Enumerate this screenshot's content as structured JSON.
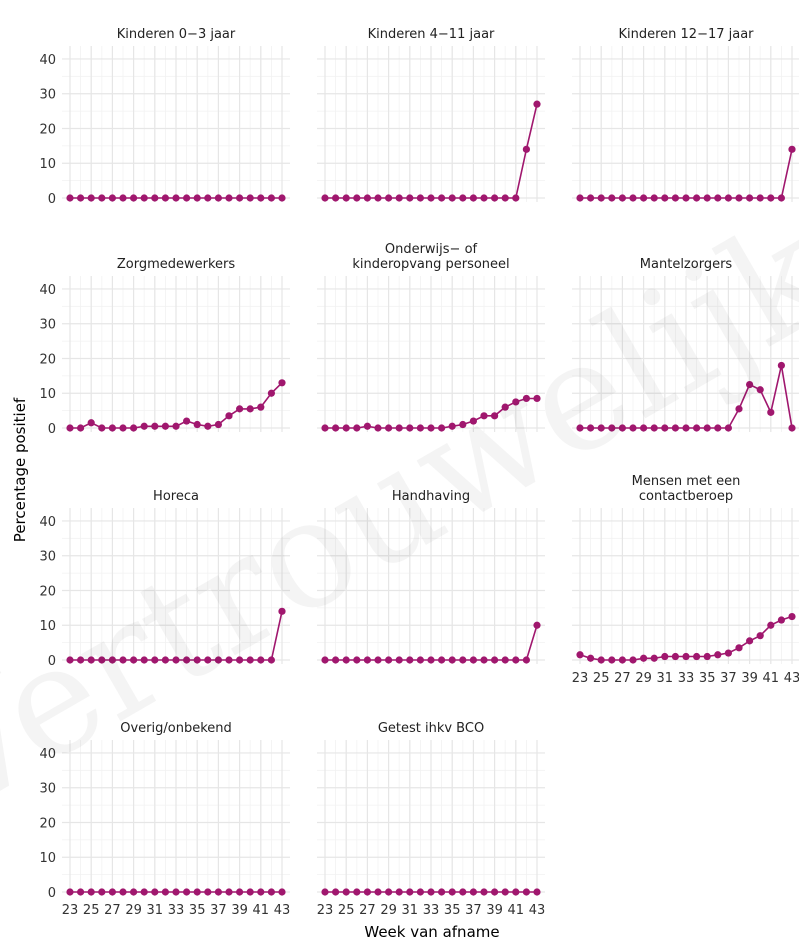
{
  "chart_data": {
    "type": "line",
    "ylabel": "Percentage positief",
    "xlabel": "Week van afname",
    "x": [
      23,
      24,
      25,
      26,
      27,
      28,
      29,
      30,
      31,
      32,
      33,
      34,
      35,
      36,
      37,
      38,
      39,
      40,
      41,
      42,
      43
    ],
    "x_ticks": [
      23,
      25,
      27,
      29,
      31,
      33,
      35,
      37,
      39,
      41,
      43
    ],
    "y_ticks": [
      0,
      10,
      20,
      30,
      40
    ],
    "ylim": [
      0,
      42
    ],
    "grid": true,
    "color": "#a0176e",
    "watermark": "Vertrouwelijk",
    "panels": [
      {
        "title_lines": [
          "Kinderen 0−3 jaar"
        ],
        "values": [
          0,
          0,
          0,
          0,
          0,
          0,
          0,
          0,
          0,
          0,
          0,
          0,
          0,
          0,
          0,
          0,
          0,
          0,
          0,
          0,
          0
        ]
      },
      {
        "title_lines": [
          "Kinderen 4−11 jaar"
        ],
        "values": [
          0,
          0,
          0,
          0,
          0,
          0,
          0,
          0,
          0,
          0,
          0,
          0,
          0,
          0,
          0,
          0,
          0,
          0,
          0,
          14,
          27
        ]
      },
      {
        "title_lines": [
          "Kinderen 12−17 jaar"
        ],
        "values": [
          0,
          0,
          0,
          0,
          0,
          0,
          0,
          0,
          0,
          0,
          0,
          0,
          0,
          0,
          0,
          0,
          0,
          0,
          0,
          0,
          14
        ]
      },
      {
        "title_lines": [
          "Zorgmedewerkers"
        ],
        "values": [
          0,
          0,
          1.5,
          0,
          0,
          0,
          0,
          0.5,
          0.5,
          0.5,
          0.5,
          2,
          1,
          0.5,
          1,
          3.5,
          5.5,
          5.5,
          6,
          10,
          13
        ]
      },
      {
        "title_lines": [
          "Onderwijs− of",
          "kinderopvang personeel"
        ],
        "values": [
          0,
          0,
          0,
          0,
          0.5,
          0,
          0,
          0,
          0,
          0,
          0,
          0,
          0.5,
          1,
          2,
          3.5,
          3.5,
          6,
          7.5,
          8.5,
          8.5
        ]
      },
      {
        "title_lines": [
          "Mantelzorgers"
        ],
        "values": [
          0,
          0,
          0,
          0,
          0,
          0,
          0,
          0,
          0,
          0,
          0,
          0,
          0,
          0,
          0,
          5.5,
          12.5,
          11,
          4.5,
          18,
          0
        ]
      },
      {
        "title_lines": [
          "Horeca"
        ],
        "values": [
          0,
          0,
          0,
          0,
          0,
          0,
          0,
          0,
          0,
          0,
          0,
          0,
          0,
          0,
          0,
          0,
          0,
          0,
          0,
          0,
          14
        ]
      },
      {
        "title_lines": [
          "Handhaving"
        ],
        "values": [
          0,
          0,
          0,
          0,
          0,
          0,
          0,
          0,
          0,
          0,
          0,
          0,
          0,
          0,
          0,
          0,
          0,
          0,
          0,
          0,
          10
        ]
      },
      {
        "title_lines": [
          "Mensen met een",
          "contactberoep"
        ],
        "values": [
          1.5,
          0.5,
          0,
          0,
          0,
          0,
          0.5,
          0.5,
          1,
          1,
          1,
          1,
          1,
          1.5,
          2,
          3.5,
          5.5,
          7,
          10,
          11.5,
          12.5
        ]
      },
      {
        "title_lines": [
          "Overig/onbekend"
        ],
        "values": [
          0,
          0,
          0,
          0,
          0,
          0,
          0,
          0,
          0,
          0,
          0,
          0,
          0,
          0,
          0,
          0,
          0,
          0,
          0,
          0,
          0
        ]
      },
      {
        "title_lines": [
          "Getest ihkv BCO"
        ],
        "values": [
          0,
          0,
          0,
          0,
          0,
          0,
          0,
          0,
          0,
          0,
          0,
          0,
          0,
          0,
          0,
          0,
          0,
          0,
          0,
          0,
          0
        ]
      }
    ]
  }
}
